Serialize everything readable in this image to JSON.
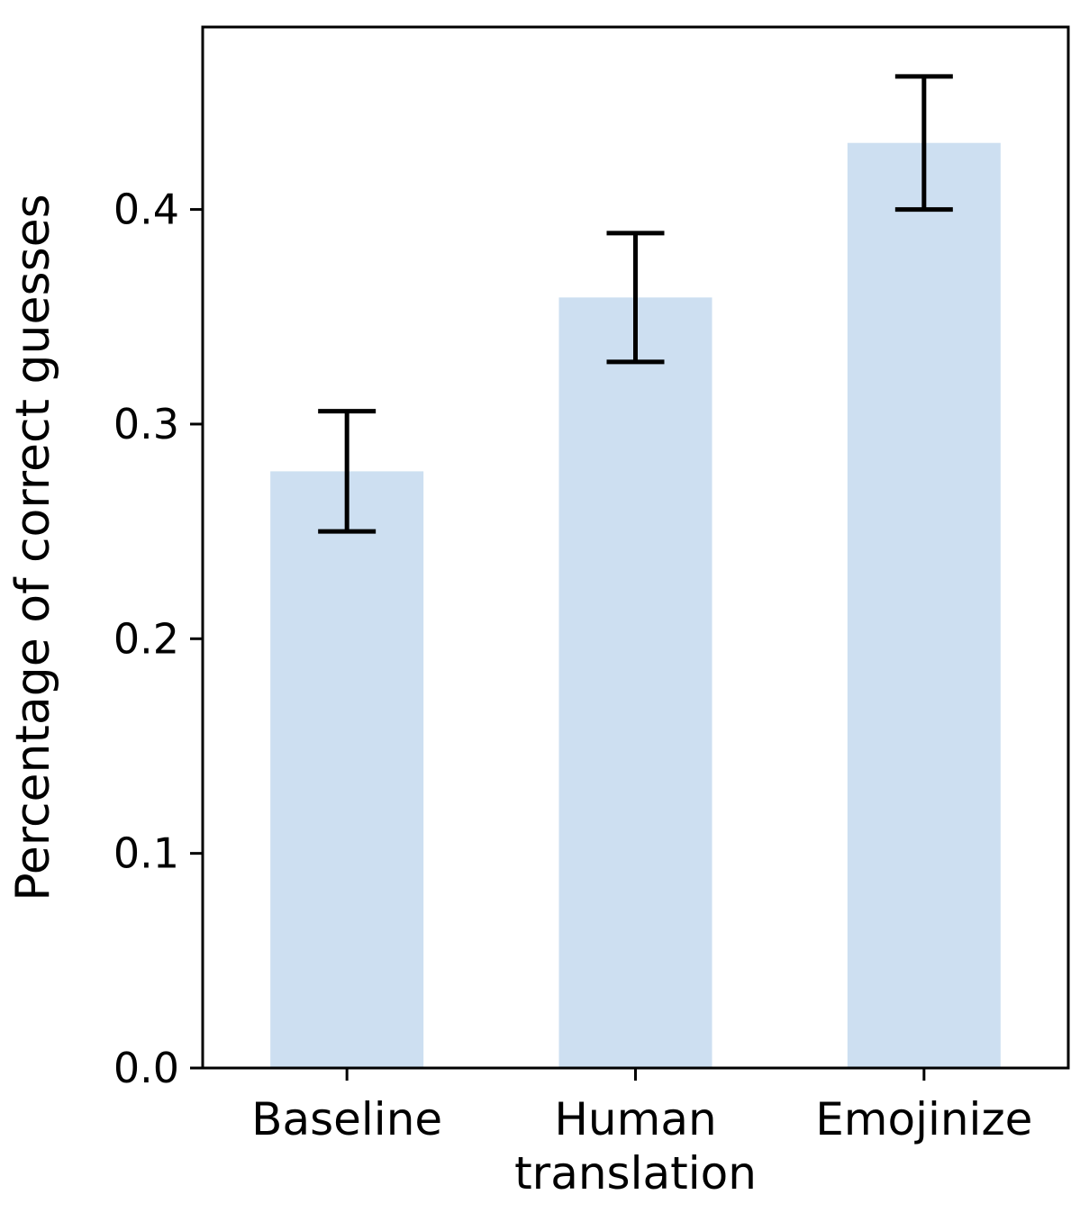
{
  "chart_data": {
    "type": "bar",
    "categories": [
      "Baseline",
      "Human\ntranslation",
      "Emojinize"
    ],
    "values": [
      0.278,
      0.359,
      0.431
    ],
    "errors": [
      0.028,
      0.03,
      0.031
    ],
    "title": "",
    "xlabel": "",
    "ylabel": "Percentage of correct guesses",
    "ylim": [
      0,
      0.485
    ],
    "yticks": [
      0.0,
      0.1,
      0.2,
      0.3,
      0.4
    ],
    "ytick_labels": [
      "0.0",
      "0.1",
      "0.2",
      "0.3",
      "0.4"
    ],
    "grid": false,
    "legend": "none",
    "bar_color": "#cddff1",
    "error_color": "#000000",
    "axis_color": "#000000"
  }
}
